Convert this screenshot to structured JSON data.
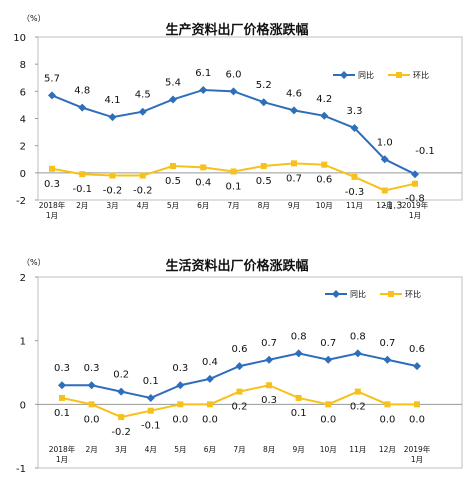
{
  "colors": {
    "yoy": "#2F6EBA",
    "mom": "#F7C11B",
    "axis": "#999999",
    "grid": "#BFBFBF"
  },
  "chart_data": [
    {
      "type": "line",
      "title": "生产资料出厂价格涨跌幅",
      "unit": "（%）",
      "categories": [
        [
          "2018年",
          "1月"
        ],
        [
          "2月"
        ],
        [
          "3月"
        ],
        [
          "4月"
        ],
        [
          "5月"
        ],
        [
          "6月"
        ],
        [
          "7月"
        ],
        [
          "8月"
        ],
        [
          "9月"
        ],
        [
          "10月"
        ],
        [
          "11月"
        ],
        [
          "12月"
        ],
        [
          "2019年",
          "1月"
        ]
      ],
      "ylim": [
        -2,
        10
      ],
      "yticks": [
        "-2",
        "0",
        "2",
        "4",
        "6",
        "8",
        "10"
      ],
      "legend_position": "top-right",
      "series": [
        {
          "name": "同比",
          "color_key": "yoy",
          "marker": "diamond",
          "values": [
            5.7,
            4.8,
            4.1,
            4.5,
            5.4,
            6.1,
            6.0,
            5.2,
            4.6,
            4.2,
            3.3,
            1.0,
            -0.1
          ],
          "labels": [
            "5.7",
            "4.8",
            "4.1",
            "4.5",
            "5.4",
            "6.1",
            "6.0",
            "5.2",
            "4.6",
            "4.2",
            "3.3",
            "1.0",
            "-0.1"
          ]
        },
        {
          "name": "环比",
          "color_key": "mom",
          "marker": "square",
          "values": [
            0.3,
            -0.1,
            -0.2,
            -0.2,
            0.5,
            0.4,
            0.1,
            0.5,
            0.7,
            0.6,
            -0.3,
            -1.3,
            -0.8
          ],
          "labels": [
            "0.3",
            "-0.1",
            "-0.2",
            "-0.2",
            "0.5",
            "0.4",
            "0.1",
            "0.5",
            "0.7",
            "0.6",
            "-0.3",
            "-1.3",
            "-0.8"
          ]
        }
      ]
    },
    {
      "type": "line",
      "title": "生活资料出厂价格涨跌幅",
      "unit": "（%）",
      "categories": [
        [
          "2018年",
          "1月"
        ],
        [
          "2月"
        ],
        [
          "3月"
        ],
        [
          "4月"
        ],
        [
          "5月"
        ],
        [
          "6月"
        ],
        [
          "7月"
        ],
        [
          "8月"
        ],
        [
          "9月"
        ],
        [
          "10月"
        ],
        [
          "11月"
        ],
        [
          "12月"
        ],
        [
          "2019年",
          "1月"
        ]
      ],
      "ylim": [
        -1,
        2
      ],
      "yticks": [
        "-1",
        "0",
        "1",
        "2"
      ],
      "legend_position": "top-right",
      "series": [
        {
          "name": "同比",
          "color_key": "yoy",
          "marker": "diamond",
          "values": [
            0.3,
            0.3,
            0.2,
            0.1,
            0.3,
            0.4,
            0.6,
            0.7,
            0.8,
            0.7,
            0.8,
            0.7,
            0.6
          ],
          "labels": [
            "0.3",
            "0.3",
            "0.2",
            "0.1",
            "0.3",
            "0.4",
            "0.6",
            "0.7",
            "0.8",
            "0.7",
            "0.8",
            "0.7",
            "0.6"
          ]
        },
        {
          "name": "环比",
          "color_key": "mom",
          "marker": "square",
          "values": [
            0.1,
            0.0,
            -0.2,
            -0.1,
            0.0,
            0.0,
            0.2,
            0.3,
            0.1,
            0.0,
            0.2,
            0.0,
            0.0
          ],
          "labels": [
            "0.1",
            "0.0",
            "-0.2",
            "-0.1",
            "0.0",
            "0.0",
            "0.2",
            "0.3",
            "0.1",
            "0.0",
            "0.2",
            "0.0",
            "0.0"
          ]
        }
      ]
    }
  ]
}
